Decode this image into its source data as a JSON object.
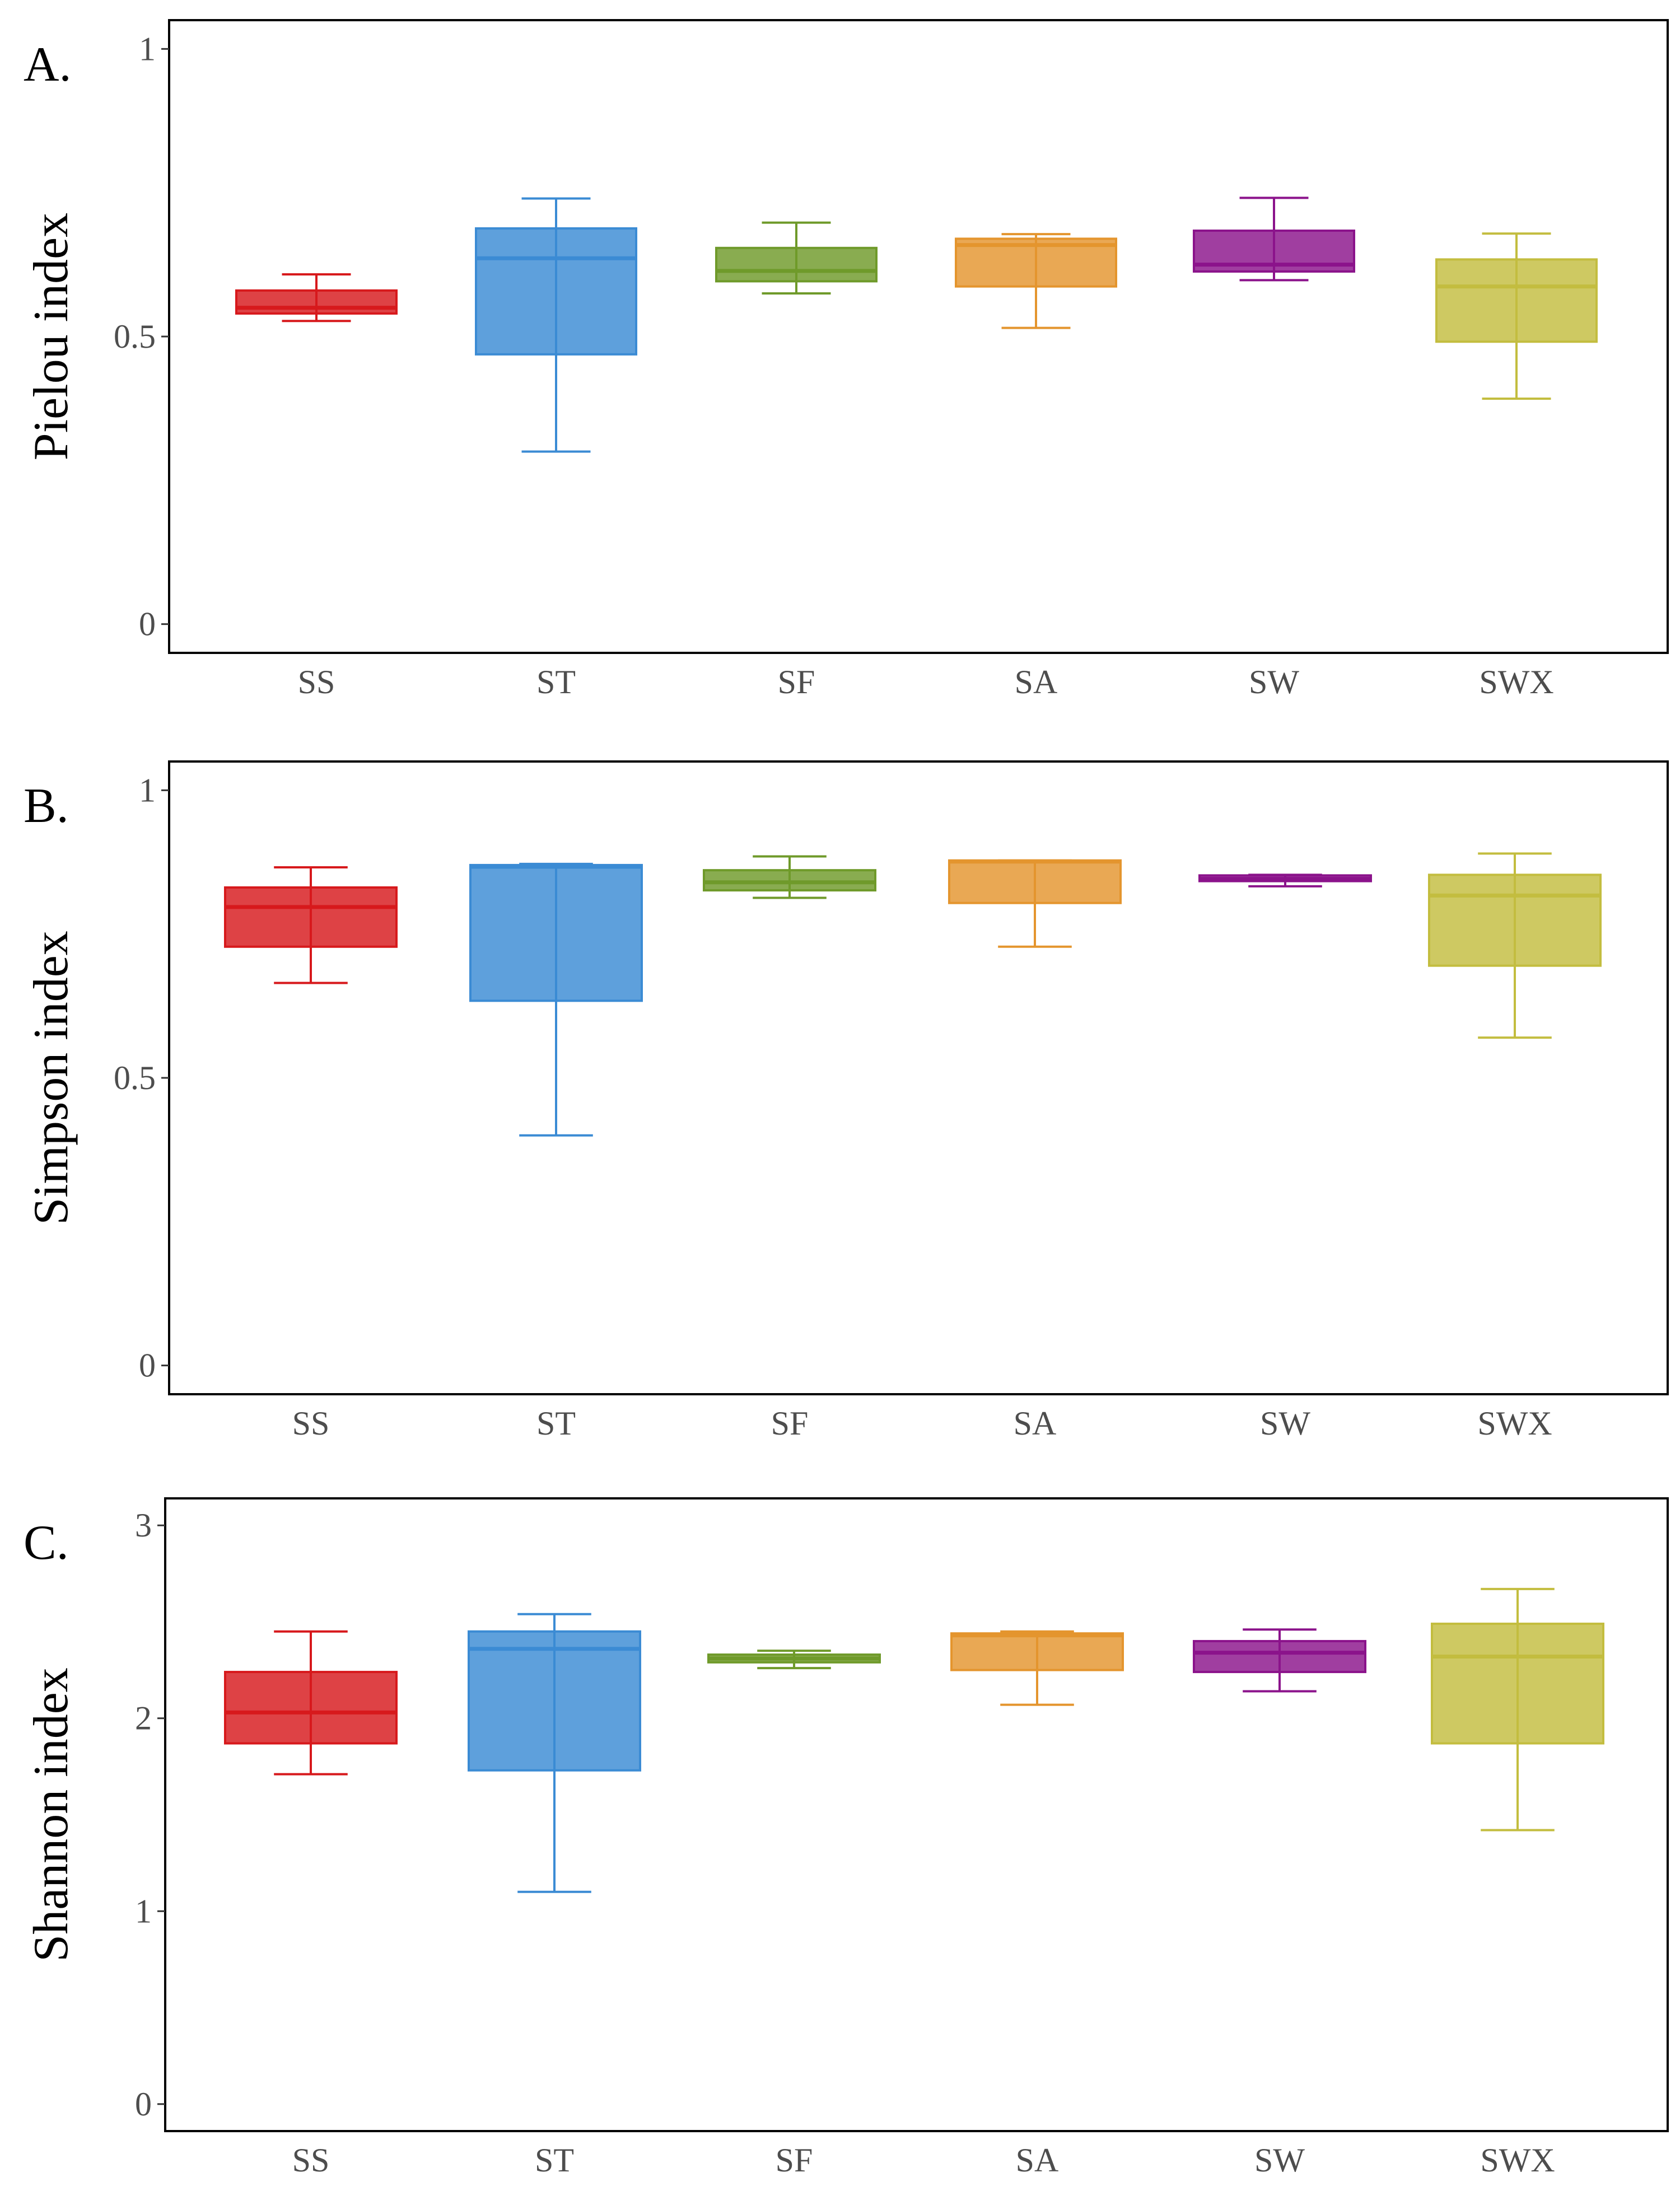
{
  "chart_data": [
    {
      "type": "box",
      "panel_label": "A.",
      "ylabel": "Pielou index",
      "ylim": [
        -0.05,
        1.05
      ],
      "yticks": [
        0,
        0.5,
        1
      ],
      "ytick_labels": [
        "0",
        "0.5",
        "1"
      ],
      "categories": [
        "SS",
        "ST",
        "SF",
        "SA",
        "SW",
        "SWX"
      ],
      "colors": [
        "#d7191c",
        "#3b8bd4",
        "#6f9a2a",
        "#e4952e",
        "#8b138b",
        "#c3bd3f"
      ],
      "boxes": [
        {
          "name": "SS",
          "min": 0.527,
          "q1": 0.54,
          "median": 0.55,
          "q3": 0.58,
          "max": 0.608
        },
        {
          "name": "ST",
          "min": 0.3,
          "q1": 0.469,
          "median": 0.636,
          "q3": 0.688,
          "max": 0.74
        },
        {
          "name": "SF",
          "min": 0.575,
          "q1": 0.596,
          "median": 0.614,
          "q3": 0.654,
          "max": 0.698
        },
        {
          "name": "SA",
          "min": 0.515,
          "q1": 0.587,
          "median": 0.659,
          "q3": 0.67,
          "max": 0.678
        },
        {
          "name": "SW",
          "min": 0.598,
          "q1": 0.613,
          "median": 0.625,
          "q3": 0.684,
          "max": 0.741
        },
        {
          "name": "SWX",
          "min": 0.392,
          "q1": 0.491,
          "median": 0.587,
          "q3": 0.634,
          "max": 0.679
        }
      ]
    },
    {
      "type": "box",
      "panel_label": "B.",
      "ylabel": "Simpson index",
      "ylim": [
        -0.05,
        1.05
      ],
      "yticks": [
        0,
        0.5,
        1
      ],
      "ytick_labels": [
        "0",
        "0.5",
        "1"
      ],
      "categories": [
        "SS",
        "ST",
        "SF",
        "SA",
        "SW",
        "SWX"
      ],
      "colors": [
        "#d7191c",
        "#3b8bd4",
        "#6f9a2a",
        "#e4952e",
        "#8b138b",
        "#c3bd3f"
      ],
      "boxes": [
        {
          "name": "SS",
          "min": 0.665,
          "q1": 0.728,
          "median": 0.797,
          "q3": 0.831,
          "max": 0.866
        },
        {
          "name": "ST",
          "min": 0.4,
          "q1": 0.634,
          "median": 0.867,
          "q3": 0.87,
          "max": 0.872
        },
        {
          "name": "SF",
          "min": 0.813,
          "q1": 0.826,
          "median": 0.84,
          "q3": 0.861,
          "max": 0.885
        },
        {
          "name": "SA",
          "min": 0.728,
          "q1": 0.804,
          "median": 0.876,
          "q3": 0.878,
          "max": 0.878
        },
        {
          "name": "SW",
          "min": 0.833,
          "q1": 0.842,
          "median": 0.846,
          "q3": 0.852,
          "max": 0.853
        },
        {
          "name": "SWX",
          "min": 0.57,
          "q1": 0.695,
          "median": 0.817,
          "q3": 0.853,
          "max": 0.89
        }
      ]
    },
    {
      "type": "box",
      "panel_label": "C.",
      "ylabel": "Shannon index",
      "ylim": [
        -0.14,
        3.14
      ],
      "yticks": [
        0,
        1,
        2,
        3
      ],
      "ytick_labels": [
        "0",
        "1",
        "2",
        "3"
      ],
      "categories": [
        "SS",
        "ST",
        "SF",
        "SA",
        "SW",
        "SWX"
      ],
      "colors": [
        "#d7191c",
        "#3b8bd4",
        "#6f9a2a",
        "#e4952e",
        "#8b138b",
        "#c3bd3f"
      ],
      "boxes": [
        {
          "name": "SS",
          "min": 1.71,
          "q1": 1.87,
          "median": 2.03,
          "q3": 2.24,
          "max": 2.45
        },
        {
          "name": "ST",
          "min": 1.1,
          "q1": 1.73,
          "median": 2.36,
          "q3": 2.45,
          "max": 2.54
        },
        {
          "name": "SF",
          "min": 2.26,
          "q1": 2.29,
          "median": 2.31,
          "q3": 2.33,
          "max": 2.35
        },
        {
          "name": "SA",
          "min": 2.07,
          "q1": 2.25,
          "median": 2.43,
          "q3": 2.44,
          "max": 2.45
        },
        {
          "name": "SW",
          "min": 2.14,
          "q1": 2.24,
          "median": 2.34,
          "q3": 2.4,
          "max": 2.46
        },
        {
          "name": "SWX",
          "min": 1.42,
          "q1": 1.87,
          "median": 2.32,
          "q3": 2.49,
          "max": 2.67
        }
      ]
    }
  ]
}
